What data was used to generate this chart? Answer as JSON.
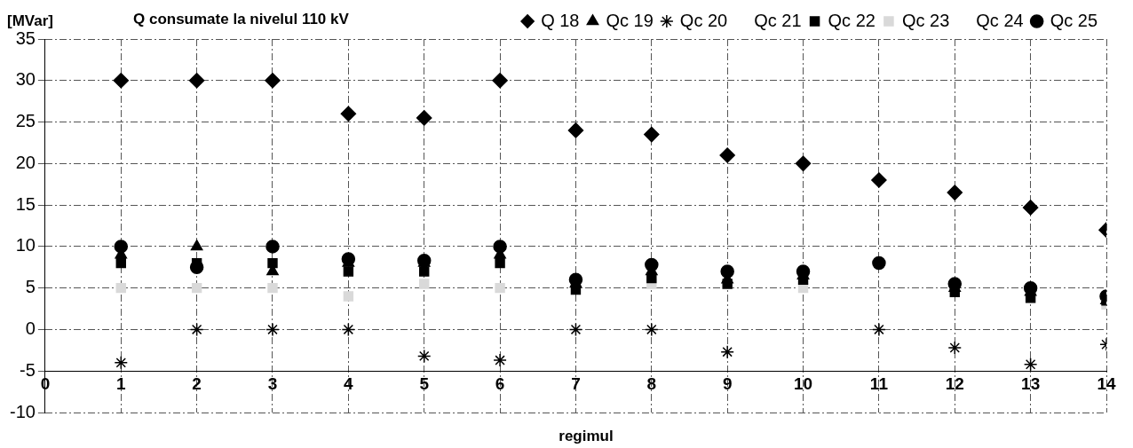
{
  "chart_data": {
    "type": "scatter",
    "title": "Q consumate la nivelul 110 kV",
    "xlabel": "regimul",
    "ylabel": "[MVar]",
    "x": [
      1,
      2,
      3,
      4,
      5,
      6,
      7,
      8,
      9,
      10,
      11,
      12,
      13,
      14
    ],
    "series": [
      {
        "name": "Q 18",
        "color": "#000000",
        "marker": "diamond",
        "values": [
          30,
          30,
          30,
          26,
          25.5,
          30,
          24,
          23.5,
          21,
          20,
          18,
          16.5,
          14.7,
          12
        ]
      },
      {
        "name": "Qc 19",
        "color": "#000000",
        "marker": "triangle",
        "values": [
          9,
          10,
          7,
          8,
          8,
          9,
          5.5,
          7,
          6,
          6.5,
          null,
          5,
          4.5,
          3.5
        ]
      },
      {
        "name": "Qc 20",
        "color": "#000000",
        "marker": "cross",
        "values": [
          -4,
          0,
          0,
          0,
          -3.2,
          -3.7,
          0,
          0,
          -2.7,
          null,
          0,
          -2.2,
          -4.2,
          -1.8
        ]
      },
      {
        "name": "Qc 21",
        "marker": "none",
        "values": [
          null,
          null,
          null,
          null,
          null,
          null,
          null,
          null,
          null,
          null,
          null,
          null,
          null,
          null
        ]
      },
      {
        "name": "Qc 22",
        "color": "#000000",
        "marker": "square",
        "values": [
          8,
          8,
          8,
          7,
          7,
          8,
          4.8,
          6.2,
          5.5,
          6,
          null,
          4.5,
          3.8,
          3.5
        ]
      },
      {
        "name": "Qc 23",
        "color": "#d9d9d9",
        "marker": "square",
        "values": [
          5,
          5,
          5,
          4,
          5.5,
          5,
          null,
          5.5,
          null,
          5,
          null,
          null,
          null,
          3
        ]
      },
      {
        "name": "Qc 24",
        "marker": "none",
        "values": [
          null,
          null,
          null,
          null,
          null,
          null,
          null,
          null,
          null,
          null,
          null,
          null,
          null,
          null
        ]
      },
      {
        "name": "Qc 25",
        "color": "#000000",
        "marker": "circle",
        "values": [
          10,
          7.5,
          10,
          8.5,
          8.3,
          10,
          6,
          7.8,
          7,
          7,
          8,
          5.5,
          5,
          4
        ]
      }
    ],
    "xlim": [
      0,
      14
    ],
    "xticks": [
      0,
      1,
      2,
      3,
      4,
      5,
      6,
      7,
      8,
      9,
      10,
      11,
      12,
      13,
      14
    ],
    "ylim": [
      -10,
      35
    ],
    "yticks": [
      -10,
      -5,
      0,
      5,
      10,
      15,
      20,
      25,
      30,
      35
    ],
    "grid": true,
    "legend": "top right"
  }
}
